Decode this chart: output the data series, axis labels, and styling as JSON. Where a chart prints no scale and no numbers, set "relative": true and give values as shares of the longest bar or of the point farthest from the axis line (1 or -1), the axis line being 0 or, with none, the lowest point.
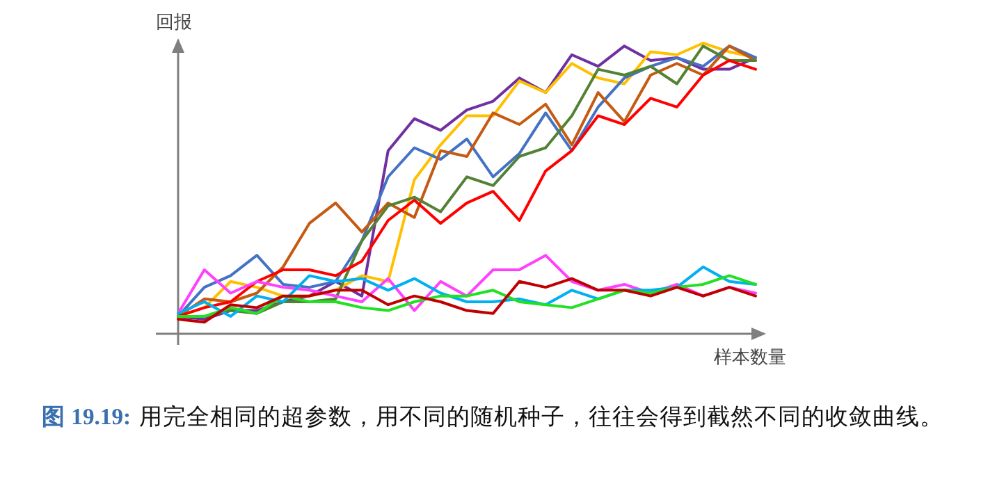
{
  "chart_data": {
    "type": "line",
    "relative": true,
    "xlabel": "样本数量",
    "ylabel": "回报",
    "annotations": [
      "图 19.19:",
      "用完全相同的超参数，用不同的随机种子，往往会得到截然不同的收敛曲线。"
    ],
    "categories": [
      null,
      null,
      null,
      null,
      null,
      null,
      null,
      null,
      null,
      null,
      null,
      null,
      null,
      null,
      null,
      null,
      null,
      null,
      null,
      null,
      null,
      null,
      null
    ],
    "series": [
      {
        "color": "#7030a0",
        "values": [
          0.06,
          0.05,
          0.08,
          0.08,
          0.11,
          0.13,
          0.18,
          0.13,
          0.63,
          0.74,
          0.7,
          0.77,
          0.8,
          0.88,
          0.83,
          0.96,
          0.92,
          0.99,
          0.94,
          0.95,
          0.91,
          0.91,
          0.95
        ]
      },
      {
        "color": "#ffc000",
        "values": [
          0.06,
          0.09,
          0.18,
          0.16,
          0.13,
          0.13,
          0.15,
          0.2,
          0.18,
          0.53,
          0.65,
          0.75,
          0.75,
          0.87,
          0.83,
          0.93,
          0.88,
          0.86,
          0.97,
          0.96,
          1,
          0.97,
          0.95
        ]
      },
      {
        "color": "#4472c4",
        "values": [
          0.06,
          0.16,
          0.2,
          0.27,
          0.17,
          0.16,
          0.18,
          0.32,
          0.54,
          0.64,
          0.6,
          0.67,
          0.54,
          0.62,
          0.76,
          0.63,
          0.78,
          0.88,
          0.92,
          0.95,
          0.92,
          0.99,
          0.95
        ]
      },
      {
        "color": "#c55a11",
        "values": [
          0.06,
          0.12,
          0.11,
          0.14,
          0.23,
          0.38,
          0.45,
          0.35,
          0.45,
          0.4,
          0.63,
          0.61,
          0.76,
          0.72,
          0.79,
          0.65,
          0.83,
          0.73,
          0.89,
          0.93,
          0.89,
          0.99,
          0.94
        ]
      },
      {
        "color": "#548235",
        "values": [
          0.06,
          0.06,
          0.08,
          0.07,
          0.11,
          0.11,
          0.12,
          0.32,
          0.44,
          0.47,
          0.42,
          0.54,
          0.51,
          0.61,
          0.64,
          0.75,
          0.91,
          0.89,
          0.92,
          0.86,
          0.99,
          0.94,
          0.94
        ]
      },
      {
        "color": "#ff0000",
        "values": [
          0.06,
          0.09,
          0.11,
          0.18,
          0.22,
          0.22,
          0.2,
          0.25,
          0.39,
          0.46,
          0.38,
          0.45,
          0.49,
          0.39,
          0.56,
          0.63,
          0.75,
          0.72,
          0.81,
          0.78,
          0.89,
          0.94,
          0.91
        ]
      },
      {
        "color": "#ff40ff",
        "values": [
          0.07,
          0.22,
          0.14,
          0.18,
          0.16,
          0.15,
          0.13,
          0.11,
          0.19,
          0.08,
          0.18,
          0.13,
          0.22,
          0.22,
          0.27,
          0.18,
          0.15,
          0.17,
          0.14,
          0.17,
          0.13,
          0.16,
          0.14
        ]
      },
      {
        "color": "#00b0f0",
        "values": [
          0.07,
          0.11,
          0.06,
          0.13,
          0.11,
          0.2,
          0.18,
          0.19,
          0.15,
          0.19,
          0.14,
          0.11,
          0.11,
          0.12,
          0.1,
          0.15,
          0.12,
          0.15,
          0.15,
          0.16,
          0.23,
          0.18,
          0.17
        ]
      },
      {
        "color": "#22e022",
        "values": [
          0.06,
          0.06,
          0.09,
          0.07,
          0.13,
          0.11,
          0.11,
          0.09,
          0.08,
          0.11,
          0.13,
          0.13,
          0.15,
          0.11,
          0.1,
          0.09,
          0.12,
          0.15,
          0.14,
          0.16,
          0.17,
          0.2,
          0.17
        ]
      },
      {
        "color": "#c00000",
        "values": [
          0.05,
          0.04,
          0.1,
          0.09,
          0.13,
          0.13,
          0.15,
          0.15,
          0.1,
          0.13,
          0.11,
          0.08,
          0.07,
          0.18,
          0.16,
          0.19,
          0.15,
          0.15,
          0.13,
          0.16,
          0.13,
          0.16,
          0.13
        ]
      }
    ]
  }
}
